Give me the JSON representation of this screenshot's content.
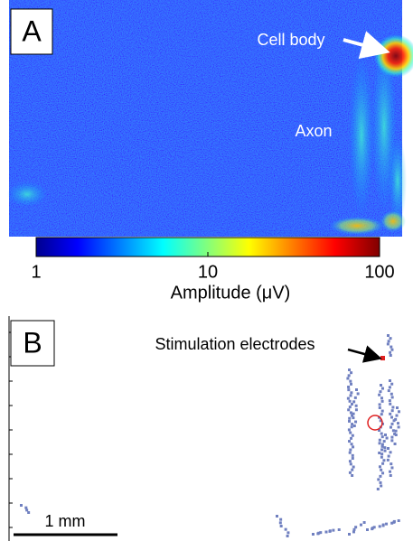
{
  "panel_a": {
    "label": "A",
    "annotations": [
      "Cell body",
      "Axon"
    ],
    "colorbar": {
      "label": "Amplitude (μV)",
      "lim": [
        1,
        100
      ],
      "ticks": [
        1,
        10,
        100
      ],
      "log_scale": true
    }
  },
  "panel_b": {
    "label": "B",
    "annotation": "Stimulation electrodes",
    "scale_bar": "1 mm"
  }
}
